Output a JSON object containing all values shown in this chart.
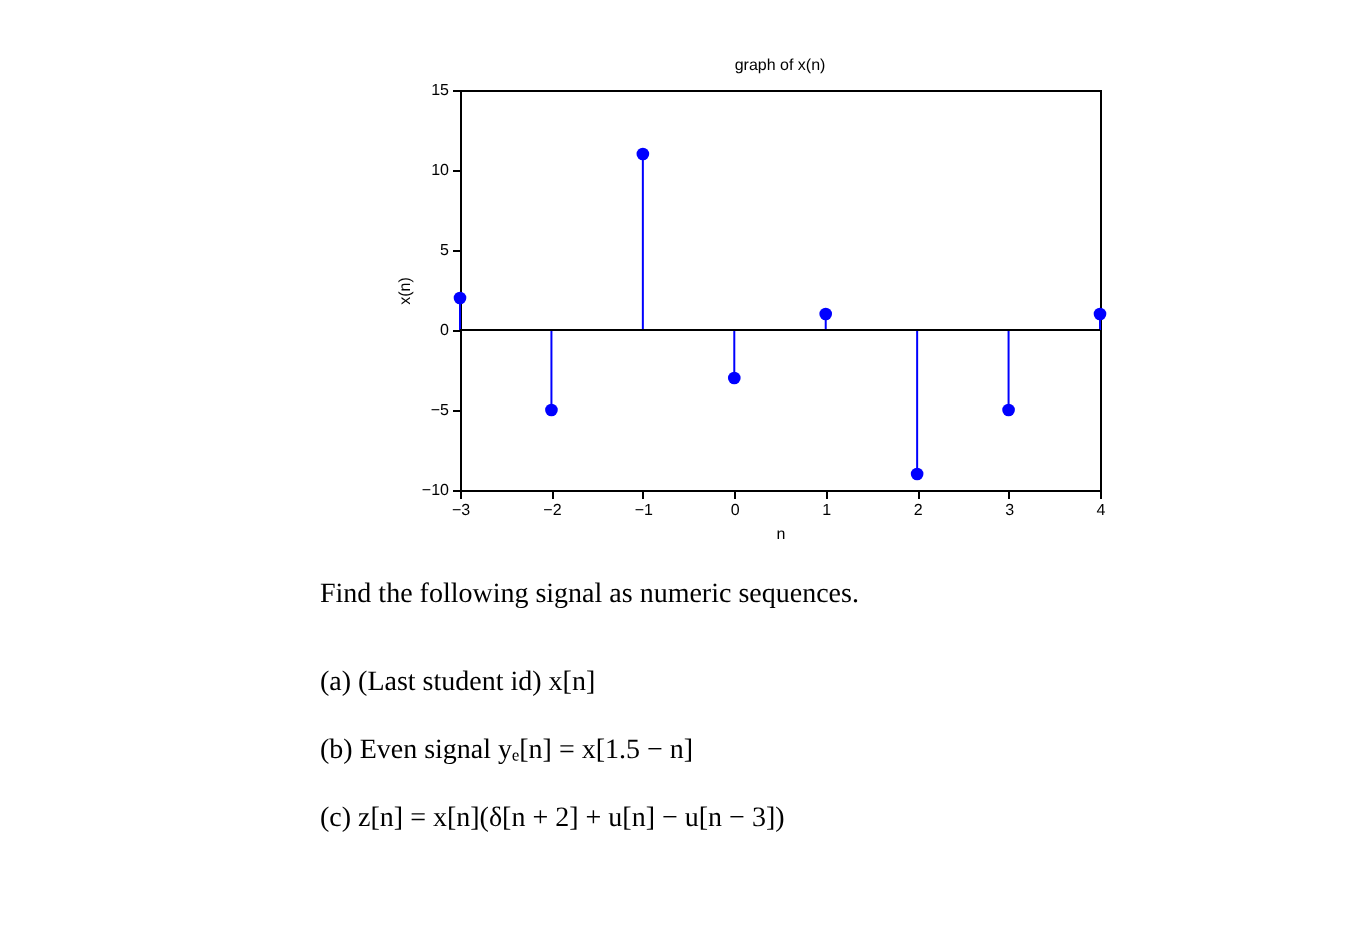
{
  "chart_data": {
    "type": "lollipop",
    "title": "graph of x(n)",
    "xlabel": "n",
    "ylabel": "x(n)",
    "x": [
      -3,
      -2,
      -1,
      0,
      1,
      2,
      3,
      4
    ],
    "series": [
      {
        "color": "#0000ff",
        "values": [
          2,
          -5,
          11,
          -3,
          1,
          -9,
          -5,
          1
        ]
      }
    ],
    "xlim": [
      -3,
      4
    ],
    "xticks": [
      -3,
      -2,
      -1,
      0,
      1,
      2,
      3,
      4
    ],
    "ylim": [
      -10,
      15
    ],
    "yticks": [
      -10,
      -5,
      0,
      5,
      10,
      15
    ],
    "marker": "circle",
    "grid": false,
    "ref_lines": [
      {
        "axis": "y",
        "value": 0,
        "color": "#000000"
      }
    ],
    "annotations": [
      "Find the following signal as numeric sequences.",
      "(a) (Last student id) x[n]",
      "(b) Even signal yₑ[n] = x[1.5 − n]",
      "(c) z[n] = x[n](δ[n + 2] + u[n] − u[n − 3])"
    ]
  }
}
